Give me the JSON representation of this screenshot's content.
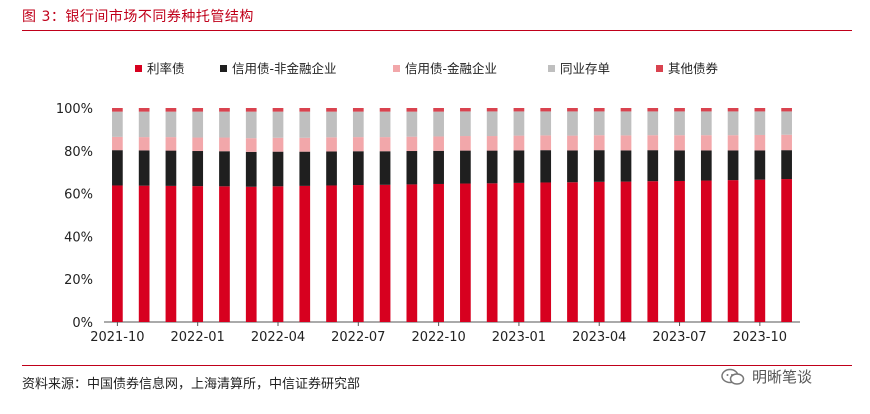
{
  "title": "图 3：银行间市场不同券种托管结构",
  "source": "资料来源：中国债券信息网，上海清算所，中信证券研究部",
  "watermark": "明晰笔谈",
  "chart_data": {
    "type": "bar",
    "stacked": true,
    "ylim": [
      0,
      100
    ],
    "yticks": [
      "0%",
      "20%",
      "40%",
      "60%",
      "80%",
      "100%"
    ],
    "legend_position": "top",
    "grid": false,
    "categories": [
      "2021-10",
      "2021-11",
      "2021-12",
      "2022-01",
      "2022-02",
      "2022-03",
      "2022-04",
      "2022-05",
      "2022-06",
      "2022-07",
      "2022-08",
      "2022-09",
      "2022-10",
      "2022-11",
      "2022-12",
      "2023-01",
      "2023-02",
      "2023-03",
      "2023-04",
      "2023-05",
      "2023-06",
      "2023-07",
      "2023-08",
      "2023-09",
      "2023-10",
      "2023-11"
    ],
    "xtick_labels": [
      "2021-10",
      "2022-01",
      "2022-04",
      "2022-07",
      "2022-10",
      "2023-01",
      "2023-04",
      "2023-07",
      "2023-10"
    ],
    "series": [
      {
        "name": "利率债",
        "color": "#d7001f",
        "values": [
          63.8,
          63.7,
          63.6,
          63.5,
          63.4,
          63.2,
          63.4,
          63.6,
          63.8,
          64.0,
          64.1,
          64.3,
          64.5,
          64.7,
          64.8,
          65.0,
          65.2,
          65.3,
          65.5,
          65.6,
          65.8,
          65.9,
          66.1,
          66.3,
          66.5,
          66.8
        ]
      },
      {
        "name": "信用债-非金融企业",
        "color": "#1f1f1f",
        "values": [
          16.5,
          16.5,
          16.5,
          16.4,
          16.4,
          16.3,
          16.2,
          16.0,
          15.9,
          15.8,
          15.7,
          15.6,
          15.5,
          15.4,
          15.3,
          15.2,
          15.1,
          14.9,
          14.8,
          14.6,
          14.5,
          14.3,
          14.1,
          13.9,
          13.7,
          13.5
        ]
      },
      {
        "name": "信用债-金融企业",
        "color": "#f2a7aa",
        "values": [
          6.2,
          6.2,
          6.3,
          6.3,
          6.4,
          6.4,
          6.5,
          6.5,
          6.6,
          6.6,
          6.6,
          6.7,
          6.7,
          6.8,
          6.8,
          6.9,
          6.9,
          6.9,
          7.0,
          7.0,
          7.0,
          7.1,
          7.1,
          7.1,
          7.2,
          7.2
        ]
      },
      {
        "name": "同业存单",
        "color": "#bfbfbf",
        "values": [
          11.8,
          11.9,
          11.9,
          12.1,
          12.1,
          12.4,
          12.2,
          12.2,
          12.0,
          11.9,
          11.9,
          11.7,
          11.6,
          11.5,
          11.5,
          11.3,
          11.2,
          11.3,
          11.1,
          11.2,
          11.1,
          11.1,
          11.1,
          11.1,
          11.0,
          10.9
        ]
      },
      {
        "name": "其他债券",
        "color": "#d9434f",
        "values": [
          1.7,
          1.7,
          1.7,
          1.7,
          1.7,
          1.7,
          1.7,
          1.7,
          1.7,
          1.7,
          1.7,
          1.7,
          1.7,
          1.6,
          1.6,
          1.6,
          1.6,
          1.6,
          1.6,
          1.6,
          1.6,
          1.6,
          1.6,
          1.6,
          1.6,
          1.6
        ]
      }
    ]
  }
}
